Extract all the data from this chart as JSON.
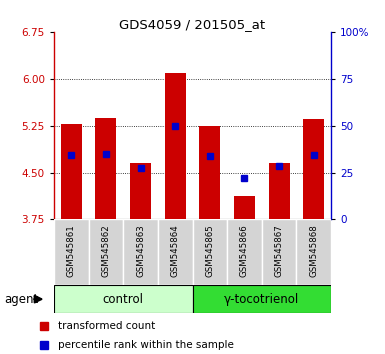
{
  "title": "GDS4059 / 201505_at",
  "samples": [
    "GSM545861",
    "GSM545862",
    "GSM545863",
    "GSM545864",
    "GSM545865",
    "GSM545866",
    "GSM545867",
    "GSM545868"
  ],
  "red_bar_top": [
    5.28,
    5.38,
    4.65,
    6.1,
    5.25,
    4.12,
    4.65,
    5.35
  ],
  "blue_marker": [
    4.78,
    4.8,
    4.58,
    5.25,
    4.77,
    4.42,
    4.6,
    4.78
  ],
  "bar_bottom": 3.75,
  "ylim_left": [
    3.75,
    6.75
  ],
  "yticks_left": [
    3.75,
    4.5,
    5.25,
    6.0,
    6.75
  ],
  "ylim_right": [
    0,
    100
  ],
  "yticks_right": [
    0,
    25,
    50,
    75,
    100
  ],
  "yticklabels_right": [
    "0",
    "25",
    "50",
    "75",
    "100%"
  ],
  "red_color": "#cc0000",
  "blue_color": "#0000cc",
  "control_color": "#ccffcc",
  "treatment_color": "#33dd33",
  "xticklabel_bg": "#d4d4d4",
  "group_label_control": "control",
  "group_label_treatment": "γ-tocotrienol",
  "agent_label": "agent",
  "legend_red": "transformed count",
  "legend_blue": "percentile rank within the sample",
  "bar_width": 0.6,
  "n_control": 4,
  "n_treatment": 4
}
